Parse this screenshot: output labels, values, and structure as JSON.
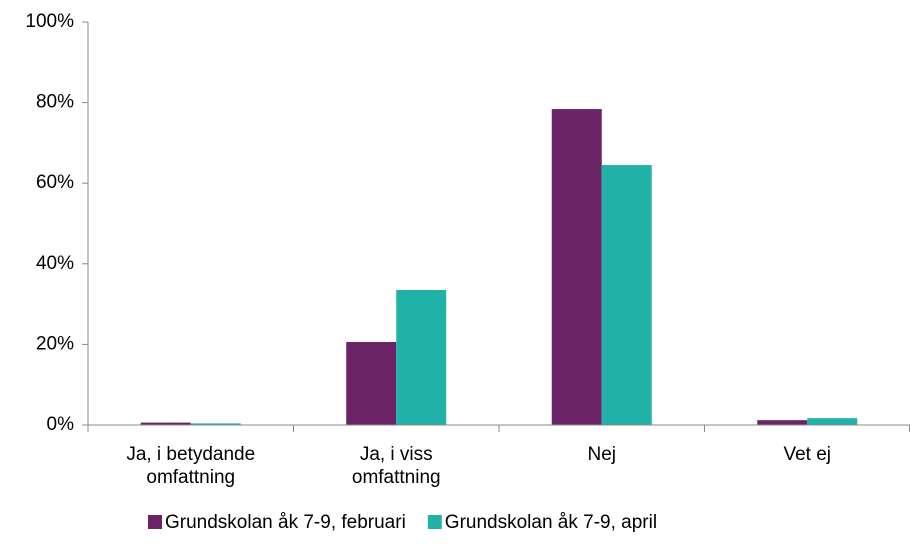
{
  "chart_data": {
    "type": "bar",
    "categories": [
      "Ja, i betydande\nomfattning",
      "Ja, i viss\nomfattning",
      "Nej",
      "Vet ej"
    ],
    "series": [
      {
        "name": "Grundskolan åk 7-9, februari",
        "color": "#6b2466",
        "values": [
          0.6,
          20.6,
          78.4,
          1.2
        ]
      },
      {
        "name": "Grundskolan åk 7-9, april",
        "color": "#20b2a6",
        "values": [
          0.4,
          33.5,
          64.5,
          1.7
        ]
      }
    ],
    "ylim": [
      0,
      100
    ],
    "yticks": [
      {
        "value": 0,
        "label": "0%"
      },
      {
        "value": 20,
        "label": "20%"
      },
      {
        "value": 40,
        "label": "40%"
      },
      {
        "value": 60,
        "label": "60%"
      },
      {
        "value": 80,
        "label": "80%"
      },
      {
        "value": 100,
        "label": "100%"
      }
    ],
    "grid": false
  }
}
